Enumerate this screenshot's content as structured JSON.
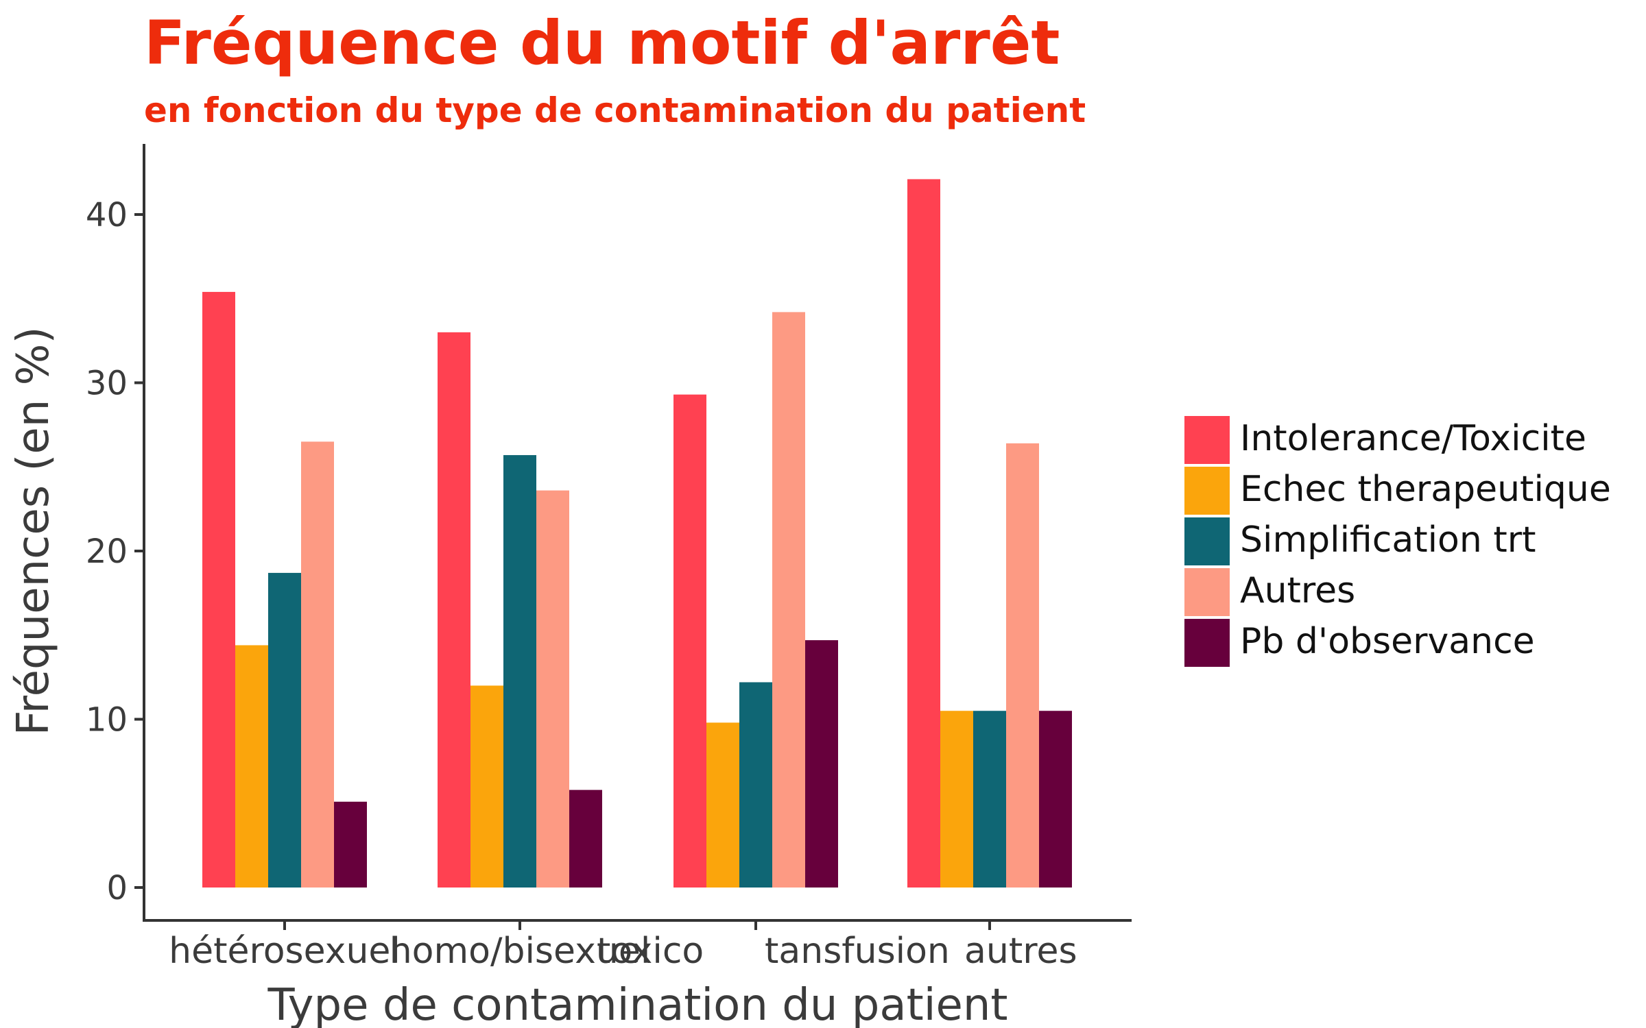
{
  "chart_data": {
    "type": "bar",
    "title": "Fréquence du motif d'arrêt",
    "subtitle": "en fonction du type de contamination du patient",
    "xlabel": "Type de contamination du patient",
    "ylabel": "Fréquences (en %)",
    "ylim": [
      0,
      44
    ],
    "yticks": [
      0,
      10,
      20,
      30,
      40
    ],
    "grid": false,
    "legend_position": "right",
    "categories": [
      "hétérosexuel",
      "homo/bisexuel",
      "toxico",
      "tansfusion",
      "autres"
    ],
    "series": [
      {
        "name": "Intolerance/Toxicite",
        "color": "#ff4151",
        "values": [
          35.4,
          33.0,
          29.3,
          null,
          42.1
        ]
      },
      {
        "name": "Echec therapeutique",
        "color": "#fba50c",
        "values": [
          14.4,
          12.0,
          9.8,
          null,
          10.5
        ]
      },
      {
        "name": "Simplification trt",
        "color": "#0f6674",
        "values": [
          18.7,
          25.7,
          12.2,
          null,
          10.5
        ]
      },
      {
        "name": "Autres",
        "color": "#fd9a83",
        "values": [
          26.5,
          23.6,
          34.2,
          null,
          26.4
        ]
      },
      {
        "name": "Pb d'observance",
        "color": "#67003c",
        "values": [
          5.1,
          5.8,
          14.7,
          null,
          10.5
        ]
      }
    ]
  }
}
